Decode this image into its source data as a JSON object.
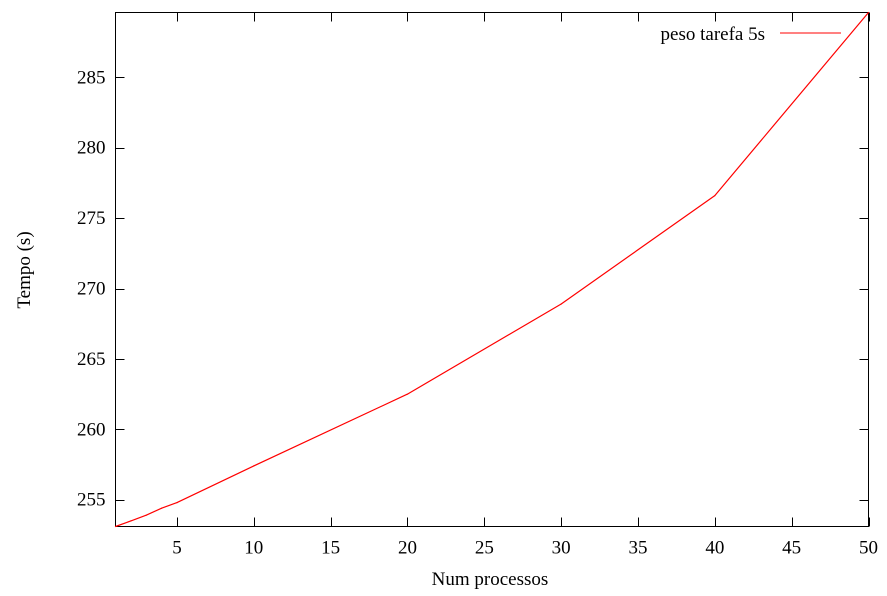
{
  "chart_data": {
    "type": "line",
    "xlabel": "Num processos",
    "ylabel": "Tempo (s)",
    "xlim": [
      1,
      50
    ],
    "ylim": [
      253.1,
      289.6
    ],
    "x_ticks": [
      5,
      10,
      15,
      20,
      25,
      30,
      35,
      40,
      45,
      50
    ],
    "y_ticks": [
      255,
      260,
      265,
      270,
      275,
      280,
      285
    ],
    "grid": false,
    "legend_position": "top-right",
    "series": [
      {
        "name": "peso tarefa 5s",
        "color": "#ff0000",
        "x": [
          1,
          2,
          3,
          4,
          5,
          10,
          20,
          30,
          40,
          50
        ],
        "y": [
          253.1,
          253.5,
          253.9,
          254.4,
          254.8,
          257.4,
          262.5,
          268.9,
          276.6,
          289.6
        ]
      }
    ]
  }
}
